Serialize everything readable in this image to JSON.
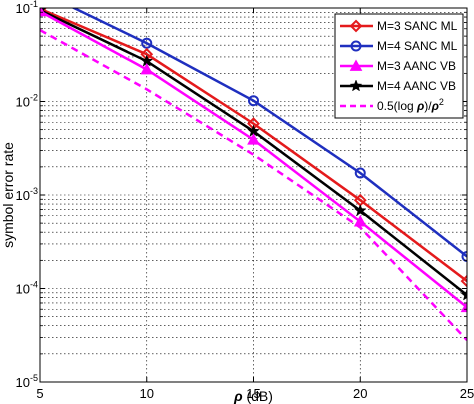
{
  "chart_data": {
    "type": "line",
    "xlabel_symbol": "ρ",
    "xlabel_unit": " (dB)",
    "ylabel": "symbol error rate",
    "x_scale": "linear",
    "y_scale": "log",
    "xlim": [
      5,
      25
    ],
    "ylim": [
      1e-05,
      0.1
    ],
    "x_ticks": [
      5,
      10,
      15,
      20,
      25
    ],
    "x_tick_labels": [
      "5",
      "10",
      "15",
      "20",
      "25"
    ],
    "y_ticks": [
      1e-05,
      0.0001,
      0.001,
      0.01,
      0.1
    ],
    "y_tick_labels": [
      {
        "base": "10",
        "exp": "-5"
      },
      {
        "base": "10",
        "exp": "-4"
      },
      {
        "base": "10",
        "exp": "-3"
      },
      {
        "base": "10",
        "exp": "-2"
      },
      {
        "base": "10",
        "exp": "-1"
      }
    ],
    "grid": true,
    "legend_position": "top-right",
    "x": [
      5,
      10,
      15,
      20,
      25
    ],
    "series": [
      {
        "name": "M=3 SANC ML",
        "color": "#e41a1c",
        "marker": "diamond",
        "line": "solid",
        "values": [
          0.098,
          0.032,
          0.0058,
          0.00088,
          0.00012
        ]
      },
      {
        "name": "M=4 SANC ML",
        "color": "#1f2fbf",
        "marker": "circle",
        "line": "solid",
        "values": [
          0.15,
          0.042,
          0.0102,
          0.00172,
          0.00022
        ]
      },
      {
        "name": "M=3 AANC VB",
        "color": "#ff00ff",
        "marker": "triangle",
        "line": "solid",
        "values": [
          0.092,
          0.022,
          0.0039,
          0.00052,
          6.3e-05
        ]
      },
      {
        "name": "M=4 AANC VB",
        "color": "#000000",
        "marker": "star",
        "line": "solid",
        "values": [
          0.095,
          0.027,
          0.0048,
          0.00068,
          8.5e-05
        ]
      },
      {
        "name_prefix": "0.5(log ",
        "name_symbol": "ρ",
        "name_mid": ")/",
        "name_symbol2": "ρ",
        "name_exp": "2",
        "color": "#ff00ff",
        "marker": "none",
        "line": "dashed",
        "values": [
          0.058,
          0.0135,
          0.0027,
          0.00045,
          2.8e-05
        ]
      }
    ]
  }
}
